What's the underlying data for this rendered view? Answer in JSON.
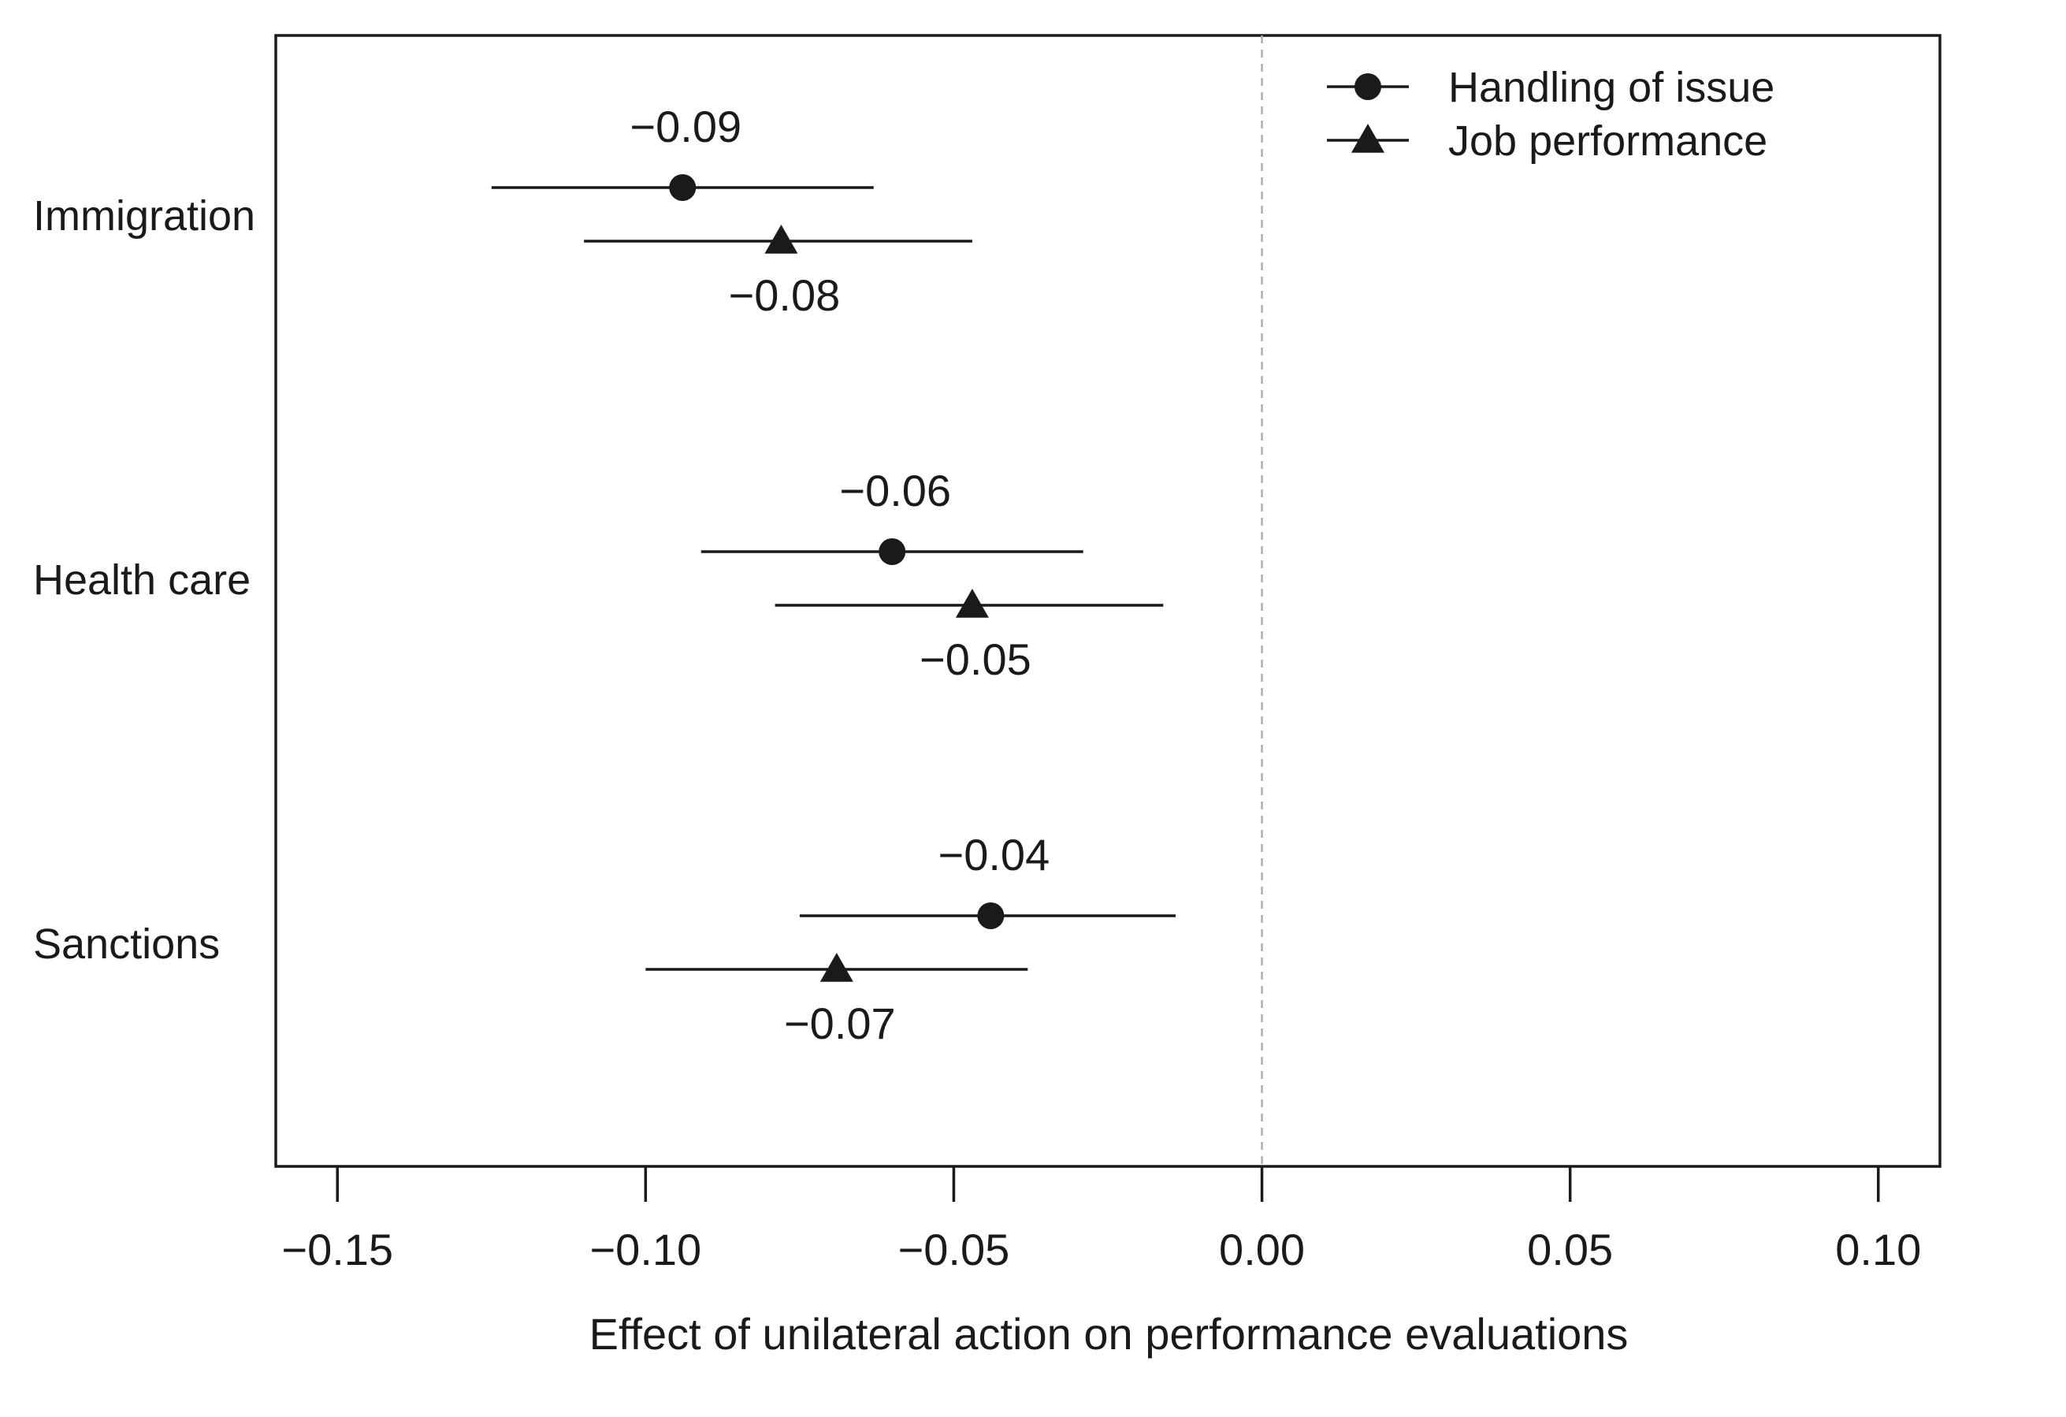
{
  "chart_data": {
    "type": "scatter",
    "subtype": "coefficient-plot-with-confidence-intervals",
    "xlabel": "Effect of unilateral action on performance evaluations",
    "xlim": [
      -0.16,
      0.11
    ],
    "xticks": [
      -0.15,
      -0.1,
      -0.05,
      0.0,
      0.05,
      0.1
    ],
    "xtick_labels": [
      "−0.15",
      "−0.10",
      "−0.05",
      "0.00",
      "0.05",
      "0.10"
    ],
    "reference_line": {
      "x": 0.0,
      "style": "dashed",
      "color": "#b0b0b0"
    },
    "categories": [
      "Immigration",
      "Health care",
      "Sanctions"
    ],
    "legend": {
      "position": "top-right",
      "entries": [
        {
          "name": "Handling of issue",
          "marker": "circle"
        },
        {
          "name": "Job performance",
          "marker": "triangle"
        }
      ]
    },
    "series": [
      {
        "name": "Handling of issue",
        "marker": "circle",
        "points": [
          {
            "category": "Immigration",
            "estimate": -0.094,
            "ci_low": -0.125,
            "ci_high": -0.063,
            "label": "−0.09"
          },
          {
            "category": "Health care",
            "estimate": -0.06,
            "ci_low": -0.091,
            "ci_high": -0.029,
            "label": "−0.06"
          },
          {
            "category": "Sanctions",
            "estimate": -0.044,
            "ci_low": -0.075,
            "ci_high": -0.014,
            "label": "−0.04"
          }
        ]
      },
      {
        "name": "Job performance",
        "marker": "triangle",
        "points": [
          {
            "category": "Immigration",
            "estimate": -0.078,
            "ci_low": -0.11,
            "ci_high": -0.047,
            "label": "−0.08"
          },
          {
            "category": "Health care",
            "estimate": -0.047,
            "ci_low": -0.079,
            "ci_high": -0.016,
            "label": "−0.05"
          },
          {
            "category": "Sanctions",
            "estimate": -0.069,
            "ci_low": -0.1,
            "ci_high": -0.038,
            "label": "−0.07"
          }
        ]
      }
    ],
    "colors": {
      "ink": "#1a1a1a",
      "reference": "#b0b0b0",
      "background": "#ffffff"
    }
  }
}
